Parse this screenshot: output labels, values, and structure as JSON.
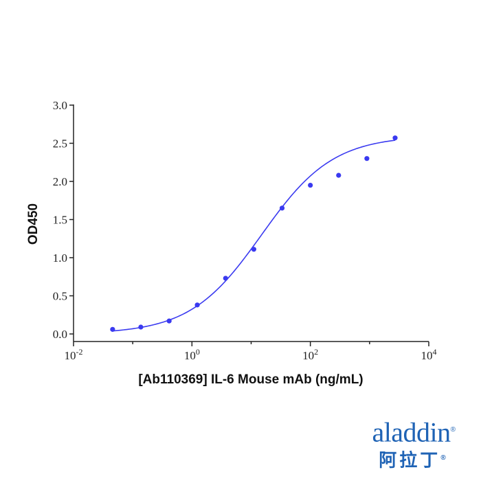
{
  "chart_data": {
    "type": "scatter",
    "xlabel": "[Ab110369] IL-6 Mouse mAb (ng/mL)",
    "ylabel": "OD450",
    "x_scale": "log10",
    "xlim": [
      0.01,
      10000
    ],
    "ylim": [
      0,
      3.0
    ],
    "x_ticks": [
      {
        "value": 0.01,
        "base": "10",
        "exp": "-2"
      },
      {
        "value": 1,
        "base": "10",
        "exp": "0"
      },
      {
        "value": 100,
        "base": "10",
        "exp": "2"
      },
      {
        "value": 10000,
        "base": "10",
        "exp": "4"
      }
    ],
    "y_ticks": [
      {
        "value": 0.0,
        "label": "0.0"
      },
      {
        "value": 0.5,
        "label": "0.5"
      },
      {
        "value": 1.0,
        "label": "1.0"
      },
      {
        "value": 1.5,
        "label": "1.5"
      },
      {
        "value": 2.0,
        "label": "2.0"
      },
      {
        "value": 2.5,
        "label": "2.5"
      },
      {
        "value": 3.0,
        "label": "3.0"
      }
    ],
    "grid": false,
    "series": [
      {
        "color": "#3a3af0",
        "points": [
          {
            "x": 0.0457,
            "y": 0.06
          },
          {
            "x": 0.137,
            "y": 0.09
          },
          {
            "x": 0.412,
            "y": 0.17
          },
          {
            "x": 1.23,
            "y": 0.38
          },
          {
            "x": 3.7,
            "y": 0.73
          },
          {
            "x": 11.1,
            "y": 1.11
          },
          {
            "x": 33.3,
            "y": 1.65
          },
          {
            "x": 100,
            "y": 1.95
          },
          {
            "x": 300,
            "y": 2.08
          },
          {
            "x": 900,
            "y": 2.3
          },
          {
            "x": 2700,
            "y": 2.57
          }
        ],
        "fit_curve": {
          "model": "4PL",
          "bottom": 0.0,
          "top": 2.6,
          "ec50": 15,
          "hill": 0.72,
          "x_range": [
            0.0457,
            2700
          ],
          "color": "#3a3af0"
        }
      }
    ]
  },
  "logo": {
    "text": "aladdin",
    "chinese": "阿拉丁",
    "registered": "®",
    "color": "#1f63b5"
  }
}
